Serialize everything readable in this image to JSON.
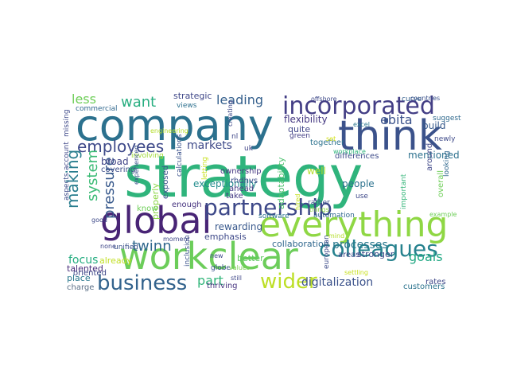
{
  "words": [
    {
      "text": "strategy",
      "color": "#2fb47c"
    },
    {
      "text": "company",
      "color": "#2c718e"
    },
    {
      "text": "think",
      "color": "#3b528b"
    },
    {
      "text": "incorporated",
      "color": "#433e85"
    },
    {
      "text": "global",
      "color": "#482475"
    },
    {
      "text": "everything",
      "color": "#8fd744"
    },
    {
      "text": "partnership",
      "color": "#3e4989"
    },
    {
      "text": "workclear",
      "color": "#6ccd5a"
    },
    {
      "text": "colleagues",
      "color": "#26828e"
    },
    {
      "text": "business",
      "color": "#33638d"
    },
    {
      "text": "wider",
      "color": "#bddf26"
    },
    {
      "text": "employees",
      "color": "#3e4989"
    },
    {
      "text": "want",
      "color": "#28ae80"
    },
    {
      "text": "leading",
      "color": "#35608d"
    },
    {
      "text": "less",
      "color": "#6ece58"
    },
    {
      "text": "ebita",
      "color": "#3b528b"
    },
    {
      "text": "making",
      "color": "#287d8e"
    },
    {
      "text": "system",
      "color": "#3bbb75"
    },
    {
      "text": "pressure",
      "color": "#38598c"
    },
    {
      "text": "markets",
      "color": "#3e4989"
    },
    {
      "text": "flexibility",
      "color": "#453882"
    },
    {
      "text": "build",
      "color": "#375a8c"
    },
    {
      "text": "quite",
      "color": "#404588"
    },
    {
      "text": "twinn",
      "color": "#31688e"
    },
    {
      "text": "focus",
      "color": "#26ad81"
    },
    {
      "text": "goals",
      "color": "#22a884"
    },
    {
      "text": "processes",
      "color": "#2a788e"
    },
    {
      "text": "part",
      "color": "#32b67a"
    },
    {
      "text": "digitalization",
      "color": "#3b528b"
    },
    {
      "text": "mentioned",
      "color": "#2d718e"
    },
    {
      "text": "people",
      "color": "#2c728e"
    },
    {
      "text": "well",
      "color": "#b5de2b"
    },
    {
      "text": "strategic",
      "color": "#3f4788"
    },
    {
      "text": "exceptionally",
      "color": "#228d8d"
    },
    {
      "text": "rewarding",
      "color": "#38588c"
    },
    {
      "text": "emphasis",
      "color": "#3e4989"
    },
    {
      "text": "collaboration",
      "color": "#31688e"
    },
    {
      "text": "stronger",
      "color": "#3e4c8a"
    },
    {
      "text": "talented",
      "color": "#472c7a"
    },
    {
      "text": "place",
      "color": "#2a788e"
    },
    {
      "text": "charge",
      "color": "#5b6f86"
    },
    {
      "text": "oriented",
      "color": "#3f4889"
    },
    {
      "text": "customers",
      "color": "#2c738e"
    },
    {
      "text": "rates",
      "color": "#3f4889"
    },
    {
      "text": "broad",
      "color": "#414487"
    },
    {
      "text": "covering",
      "color": "#3d4e8a"
    },
    {
      "text": "already",
      "color": "#c2df23"
    },
    {
      "text": "properly",
      "color": "#8bd646"
    },
    {
      "text": "exposed",
      "color": "#3b528b"
    },
    {
      "text": "adaptability",
      "color": "#4ac16d"
    },
    {
      "text": "ownership",
      "color": "#453882"
    },
    {
      "text": "rhdhvs",
      "color": "#3d4d8a"
    },
    {
      "text": "ahead",
      "color": "#443983"
    },
    {
      "text": "take",
      "color": "#443a83"
    },
    {
      "text": "enough",
      "color": "#46337f"
    },
    {
      "text": "know",
      "color": "#6ece58"
    },
    {
      "text": "commercial",
      "color": "#31688e"
    },
    {
      "text": "views",
      "color": "#2d708e"
    },
    {
      "text": "missing",
      "color": "#3e4989"
    },
    {
      "text": "account",
      "color": "#3f4788"
    },
    {
      "text": "aspects",
      "color": "#3e4c8a"
    },
    {
      "text": "involving",
      "color": "#a0da39"
    },
    {
      "text": "letting",
      "color": "#c8e020"
    },
    {
      "text": "uk",
      "color": "#414487"
    },
    {
      "text": "nl",
      "color": "#3f4788"
    },
    {
      "text": "differences",
      "color": "#3e4c8a"
    },
    {
      "text": "together",
      "color": "#2c728e"
    },
    {
      "text": "green",
      "color": "#433e85"
    },
    {
      "text": "set",
      "color": "#d5e21a"
    },
    {
      "text": "excel",
      "color": "#2a768e"
    },
    {
      "text": "newly",
      "color": "#3e4a89"
    },
    {
      "text": "suggest",
      "color": "#306a8e"
    },
    {
      "text": "curve",
      "color": "#35608d"
    },
    {
      "text": "countries",
      "color": "#3b528b"
    },
    {
      "text": "offshore",
      "color": "#3e4989"
    },
    {
      "text": "workplace",
      "color": "#2fb47c"
    },
    {
      "text": "hired",
      "color": "#c5e021"
    },
    {
      "text": "rather",
      "color": "#3d4e8a"
    },
    {
      "text": "things",
      "color": "#8bd646"
    },
    {
      "text": "important",
      "color": "#34b679"
    },
    {
      "text": "around",
      "color": "#3f4788"
    },
    {
      "text": "overall",
      "color": "#6ece58"
    },
    {
      "text": "looking",
      "color": "#31688e"
    },
    {
      "text": "use",
      "color": "#3e4989"
    },
    {
      "text": "mind",
      "color": "#b5de2b"
    },
    {
      "text": "example",
      "color": "#6ece58"
    },
    {
      "text": "software",
      "color": "#2c728e"
    },
    {
      "text": "automation",
      "color": "#31688e"
    },
    {
      "text": "areas",
      "color": "#3e4989"
    },
    {
      "text": "european",
      "color": "#3e4c8a"
    },
    {
      "text": "settling",
      "color": "#c8e020"
    },
    {
      "text": "thriving",
      "color": "#46337f"
    },
    {
      "text": "better",
      "color": "#5ec962"
    },
    {
      "text": "globe",
      "color": "#3b528b"
    },
    {
      "text": "still",
      "color": "#3f4788"
    },
    {
      "text": "values",
      "color": "#7ad151"
    },
    {
      "text": "inclusion",
      "color": "#3b528b"
    },
    {
      "text": "new",
      "color": "#3e4989"
    },
    {
      "text": "moment",
      "color": "#3f4788"
    },
    {
      "text": "none",
      "color": "#3f4788"
    },
    {
      "text": "unified",
      "color": "#3b528b"
    },
    {
      "text": "good",
      "color": "#3e4989"
    },
    {
      "text": "experienced",
      "color": "#3b528b"
    },
    {
      "text": "calculations",
      "color": "#3b528b"
    },
    {
      "text": "engineering",
      "color": "#b5de2b"
    },
    {
      "text": "creating",
      "color": "#3e4989"
    }
  ]
}
